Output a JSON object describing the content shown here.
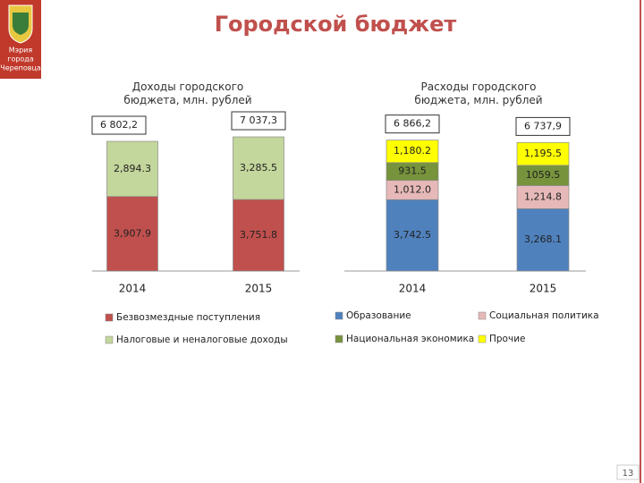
{
  "header": {
    "title": "Городской бюджет",
    "logo_text": [
      "Мэрия",
      "города",
      "Череповца"
    ]
  },
  "chart_data": [
    {
      "type": "stacked_bar",
      "title": "Доходы городского бюджета, млн. рублей",
      "categories": [
        "2014",
        "2015"
      ],
      "series": [
        {
          "name": "Безвозмездные поступления",
          "color": "#c0504d",
          "values": [
            3907.9,
            3751.8
          ],
          "value_labels": [
            "3,907.9",
            "3,751.8"
          ]
        },
        {
          "name": "Налоговые и неналоговые доходы",
          "color": "#c3d69b",
          "values": [
            2894.3,
            3285.5
          ],
          "value_labels": [
            "2,894.3",
            "3,285.5"
          ]
        }
      ],
      "totals": [
        6802.2,
        7037.3
      ],
      "total_labels": [
        "6 802,2",
        "7 037,3"
      ]
    },
    {
      "type": "stacked_bar",
      "title": "Расходы городского бюджета, млн. рублей",
      "categories": [
        "2014",
        "2015"
      ],
      "series": [
        {
          "name": "Образование",
          "color": "#4f81bd",
          "values": [
            3742.5,
            3268.1
          ],
          "value_labels": [
            "3,742.5",
            "3,268.1"
          ]
        },
        {
          "name": "Социальная политика",
          "color": "#e6b9b8",
          "values": [
            1012.0,
            1214.8
          ],
          "value_labels": [
            "1,012.0",
            "1,214.8"
          ]
        },
        {
          "name": "Национальная экономика",
          "color": "#77933c",
          "values": [
            931.5,
            1059.5
          ],
          "value_labels": [
            "931.5",
            "1059.5"
          ]
        },
        {
          "name": "Прочие",
          "color": "#ffff00",
          "values": [
            1180.2,
            1195.5
          ],
          "value_labels": [
            "1,180.2",
            "1,195.5"
          ]
        }
      ],
      "totals": [
        6866.2,
        6737.9
      ],
      "total_labels": [
        "6 866,2",
        "6 737,9"
      ]
    }
  ],
  "page_number": "13"
}
